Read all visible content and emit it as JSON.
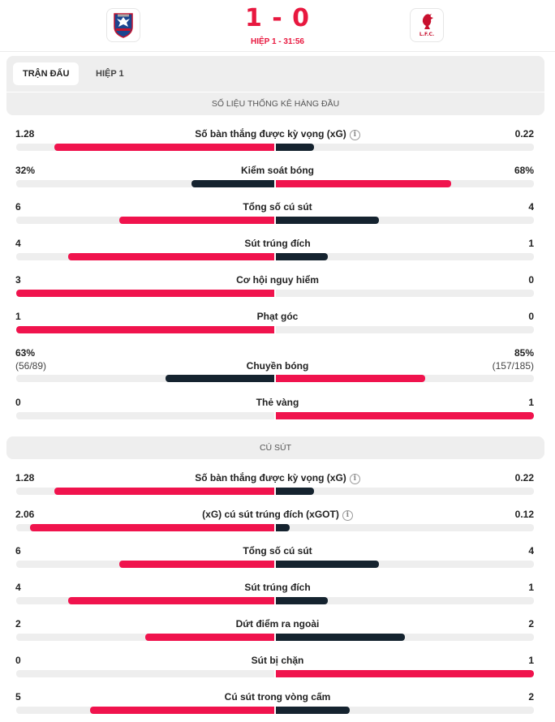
{
  "match": {
    "home_team_logo": "crystal-palace-crest",
    "away_team_logo": "liverpool-crest",
    "away_logo_text": "L.F.C.",
    "score": "1 - 0",
    "status": "HIỆP 1 - 31:56"
  },
  "colors": {
    "accent": "#f0134d",
    "dark_bar": "#15232f",
    "track": "#eeeeee"
  },
  "tabs": [
    {
      "label": "TRẬN ĐẤU",
      "active": true
    },
    {
      "label": "HIỆP 1",
      "active": false
    }
  ],
  "sections": [
    {
      "title": "SỐ LIỆU THỐNG KÊ HÀNG ĐẦU",
      "stats": [
        {
          "label": "Số bàn thắng được kỳ vọng (xG)",
          "info": true,
          "home": "1.28",
          "away": "0.22",
          "home_share": 0.853,
          "away_share": 0.147
        },
        {
          "label": "Kiểm soát bóng",
          "home": "32%",
          "away": "68%",
          "home_share": 0.32,
          "away_share": 0.68
        },
        {
          "label": "Tổng số cú sút",
          "home": "6",
          "away": "4",
          "home_share": 0.6,
          "away_share": 0.4
        },
        {
          "label": "Sút trúng đích",
          "home": "4",
          "away": "1",
          "home_share": 0.8,
          "away_share": 0.2
        },
        {
          "label": "Cơ hội nguy hiểm",
          "home": "3",
          "away": "0",
          "home_share": 1.0,
          "away_share": 0.0
        },
        {
          "label": "Phạt góc",
          "home": "1",
          "away": "0",
          "home_share": 1.0,
          "away_share": 0.0
        },
        {
          "label": "Chuyền bóng",
          "home": "63%",
          "home_sub": "(56/89)",
          "away": "85%",
          "away_sub": "(157/185)",
          "home_share": 0.42,
          "away_share": 0.58
        },
        {
          "label": "Thẻ vàng",
          "home": "0",
          "away": "1",
          "home_share": 0.0,
          "away_share": 1.0
        }
      ]
    },
    {
      "title": "CÚ SÚT",
      "stats": [
        {
          "label": "Số bàn thắng được kỳ vọng (xG)",
          "info": true,
          "home": "1.28",
          "away": "0.22",
          "home_share": 0.853,
          "away_share": 0.147
        },
        {
          "label": "(xG) cú sút trúng đích (xGOT)",
          "info": true,
          "home": "2.06",
          "away": "0.12",
          "home_share": 0.945,
          "away_share": 0.055
        },
        {
          "label": "Tổng số cú sút",
          "home": "6",
          "away": "4",
          "home_share": 0.6,
          "away_share": 0.4
        },
        {
          "label": "Sút trúng đích",
          "home": "4",
          "away": "1",
          "home_share": 0.8,
          "away_share": 0.2
        },
        {
          "label": "Dứt điểm ra ngoài",
          "home": "2",
          "away": "2",
          "home_share": 0.5,
          "away_share": 0.5
        },
        {
          "label": "Sút bị chặn",
          "home": "0",
          "away": "1",
          "home_share": 0.0,
          "away_share": 1.0
        },
        {
          "label": "Cú sút trong vòng cấm",
          "home": "5",
          "away": "2",
          "home_share": 0.714,
          "away_share": 0.286
        }
      ]
    }
  ]
}
